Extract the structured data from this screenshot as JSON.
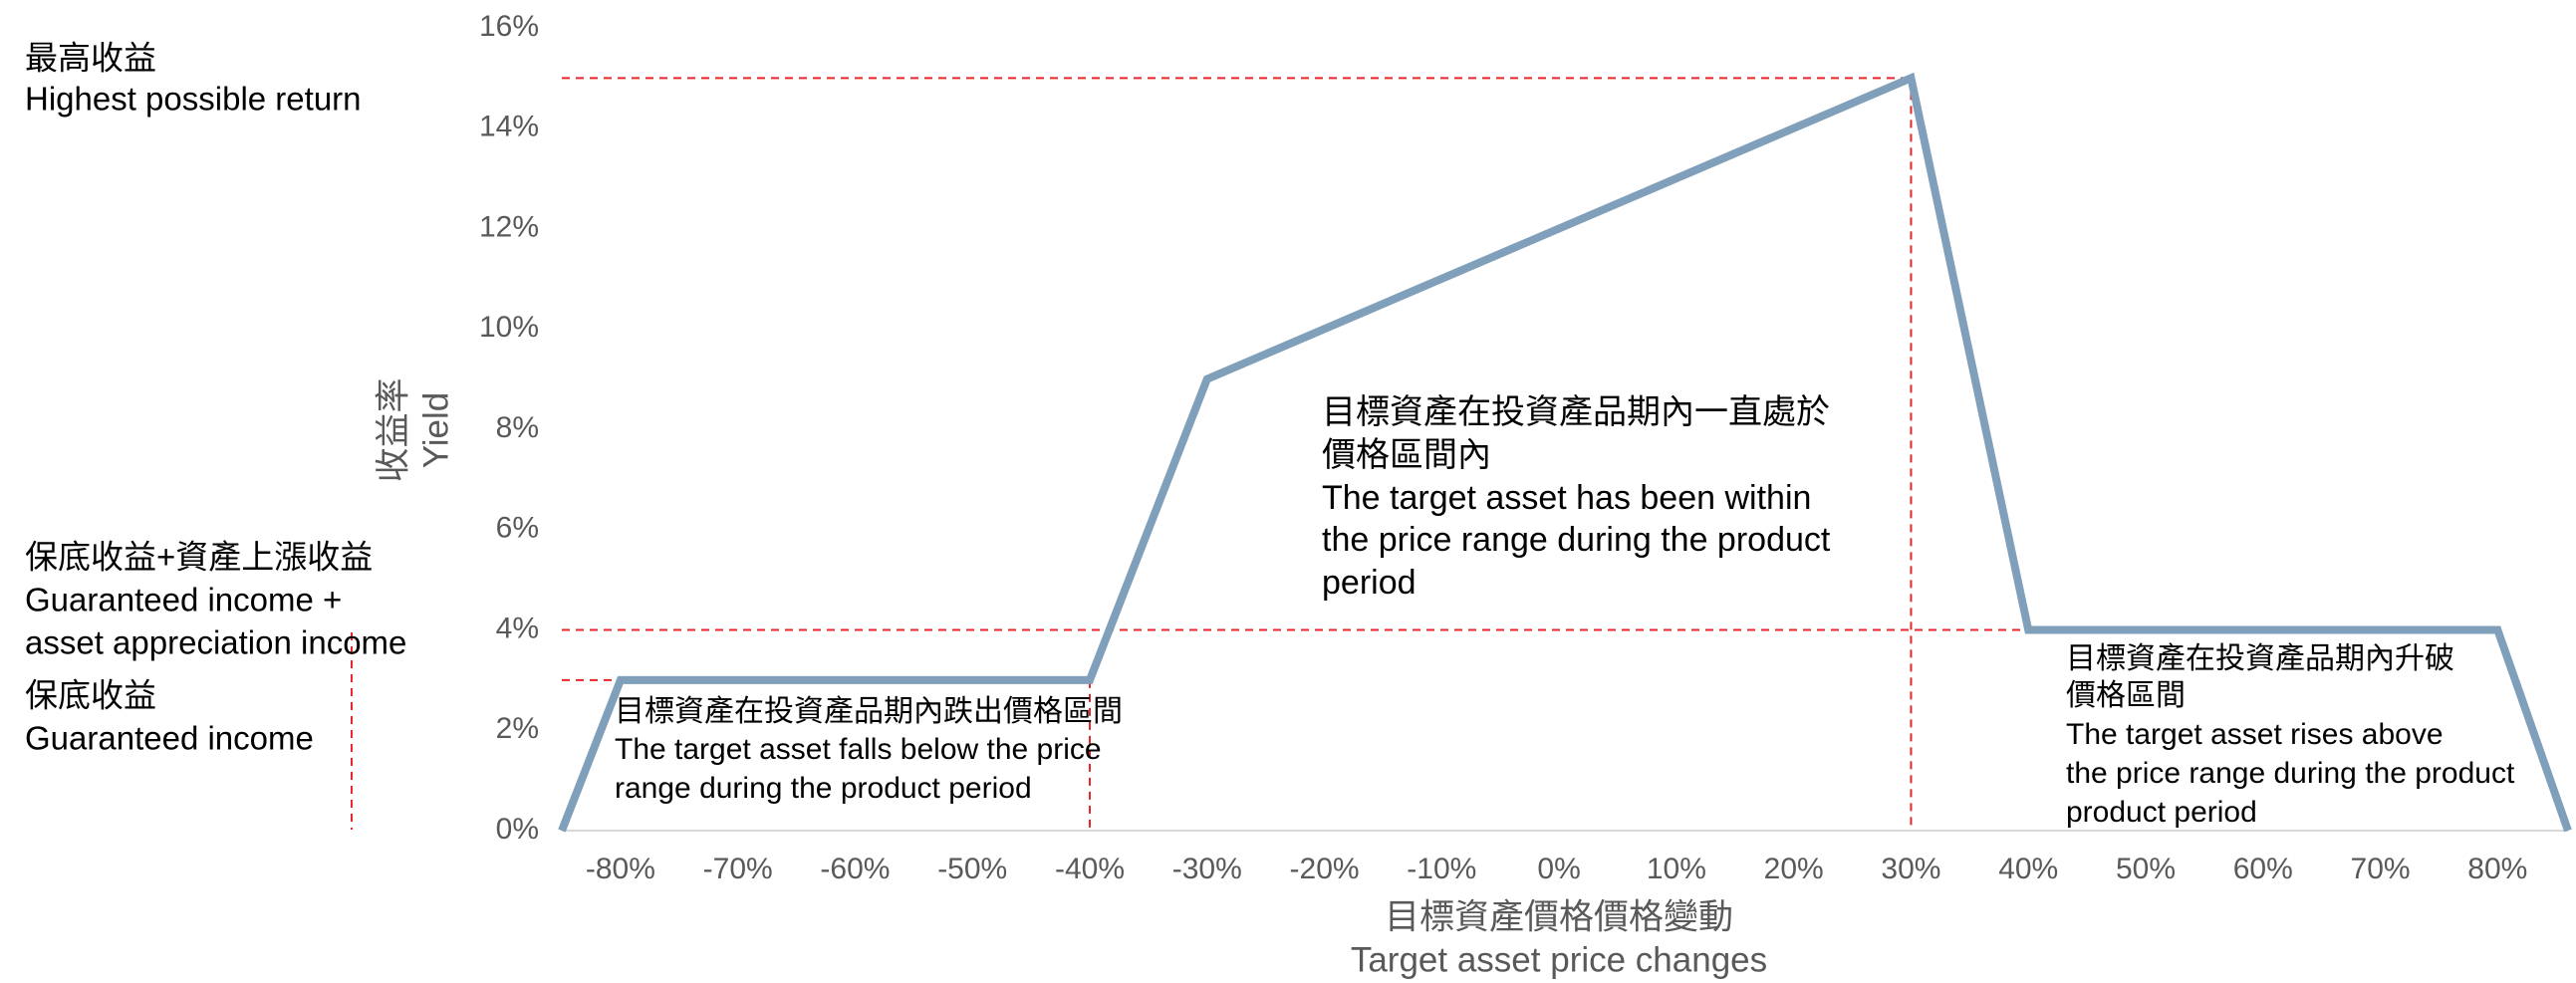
{
  "chart_data": {
    "type": "line",
    "y_label": [
      "收益率",
      "Yield"
    ],
    "x_label": [
      "目標資產價格價格變動",
      "Target asset price changes"
    ],
    "x": [
      -85,
      -80,
      -40,
      -30,
      30,
      40,
      80,
      86
    ],
    "series": [
      {
        "color": "#7f9fba",
        "values": [
          0,
          3,
          3,
          9,
          15,
          4,
          4,
          0
        ]
      }
    ],
    "xlim": [
      -85,
      86
    ],
    "ylim": [
      0,
      16
    ],
    "xticks": [
      {
        "value": -80,
        "label": "-80%"
      },
      {
        "value": -70,
        "label": "-70%"
      },
      {
        "value": -60,
        "label": "-60%"
      },
      {
        "value": -50,
        "label": "-50%"
      },
      {
        "value": -40,
        "label": "-40%"
      },
      {
        "value": -30,
        "label": "-30%"
      },
      {
        "value": -20,
        "label": "-20%"
      },
      {
        "value": -10,
        "label": "-10%"
      },
      {
        "value": 0,
        "label": "0%"
      },
      {
        "value": 10,
        "label": "10%"
      },
      {
        "value": 20,
        "label": "20%"
      },
      {
        "value": 30,
        "label": "30%"
      },
      {
        "value": 40,
        "label": "40%"
      },
      {
        "value": 50,
        "label": "50%"
      },
      {
        "value": 60,
        "label": "60%"
      },
      {
        "value": 70,
        "label": "70%"
      },
      {
        "value": 80,
        "label": "80%"
      }
    ],
    "yticks": [
      {
        "value": 0,
        "label": "0%"
      },
      {
        "value": 2,
        "label": "2%"
      },
      {
        "value": 4,
        "label": "4%"
      },
      {
        "value": 6,
        "label": "6%"
      },
      {
        "value": 8,
        "label": "8%"
      },
      {
        "value": 10,
        "label": "10%"
      },
      {
        "value": 12,
        "label": "12%"
      },
      {
        "value": 14,
        "label": "14%"
      },
      {
        "value": 16,
        "label": "16%"
      }
    ],
    "left_labels": [
      [
        "最高收益",
        "Highest possible return"
      ],
      [
        "保底收益+資產上漲收益",
        "Guaranteed income +",
        "asset appreciation income"
      ],
      [
        "保底收益",
        "Guaranteed income"
      ]
    ],
    "annotations": [
      [
        "目標資產在投資產品期內跌出價格區間",
        "The target asset falls below the price",
        "range during the product period"
      ],
      [
        "目標資產在投資產品期內一直處於",
        "價格區間內",
        "The target asset has been within",
        "the price range during the product",
        "period"
      ],
      [
        "目標資產在投資產品期內升破",
        "價格區間",
        "The target asset rises above",
        "the price range during the product",
        "product period"
      ]
    ]
  }
}
